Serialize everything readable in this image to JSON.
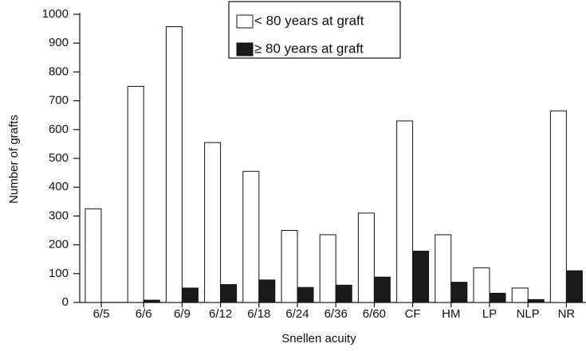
{
  "chart_data": {
    "type": "bar",
    "x_label": "Snellen acuity",
    "y_label": "Number of grafts",
    "categories": [
      "6/5",
      "6/6",
      "6/9",
      "6/12",
      "6/18",
      "6/24",
      "6/36",
      "6/60",
      "CF",
      "HM",
      "LP",
      "NLP",
      "NR"
    ],
    "series": [
      {
        "name": "< 80 years at graft",
        "color": "#ffffff",
        "values": [
          325,
          750,
          957,
          555,
          455,
          250,
          235,
          310,
          630,
          235,
          120,
          50,
          665
        ]
      },
      {
        "name": "≥ 80 years at graft",
        "color": "#1a1a1a",
        "values": [
          0,
          8,
          50,
          62,
          78,
          52,
          60,
          88,
          178,
          70,
          32,
          10,
          110
        ]
      }
    ],
    "ylim": [
      0,
      1000
    ],
    "yticks": [
      0,
      100,
      200,
      300,
      400,
      500,
      600,
      700,
      800,
      900,
      1000
    ],
    "legend": "top-center",
    "grid": false
  }
}
